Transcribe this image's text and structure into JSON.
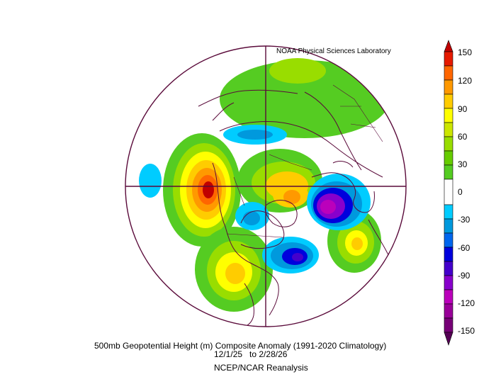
{
  "credit": "NOAA Physical Sciences Laboratory",
  "caption": {
    "line1": "500mb Geopotential Height (m) Composite Anomaly (1991-2020 Climatology)",
    "line2": "12/1/25   to 2/28/26",
    "line3": "NCEP/NCAR Reanalysis"
  },
  "colorbar": {
    "ticks": [
      "150",
      "120",
      "90",
      "60",
      "30",
      "0",
      "-30",
      "-60",
      "-90",
      "-120",
      "-150"
    ],
    "colors": {
      "p150": "#c00000",
      "p135": "#e61a00",
      "p120": "#ff6600",
      "p105": "#ff9900",
      "p90": "#ffcc00",
      "p75": "#ffff00",
      "p60": "#cce600",
      "p45": "#99dd00",
      "p30": "#55cc22",
      "zero": "#ffffff",
      "n15": "#00ccff",
      "n30": "#0099dd",
      "n45": "#0066ee",
      "n60": "#0000dd",
      "n75": "#4400cc",
      "n90": "#8800cc",
      "n105": "#bb00bb",
      "n120": "#990099",
      "n135": "#770077",
      "n150": "#550055"
    }
  },
  "map": {
    "projection": "north polar stereographic",
    "coastline_color": "#5a0a3a",
    "anomaly_centers": [
      {
        "region": "northeast Pacific / western Canada",
        "sign": "positive",
        "peak": 150
      },
      {
        "region": "northern Europe / Scandinavia",
        "sign": "negative",
        "peak": -120
      },
      {
        "region": "northwest Atlantic / eastern North America",
        "sign": "negative",
        "peak": -90
      },
      {
        "region": "Arctic / Siberia",
        "sign": "positive",
        "peak": 90
      },
      {
        "region": "central Atlantic",
        "sign": "positive",
        "peak": 75
      },
      {
        "region": "Alaska / Bering",
        "sign": "negative",
        "peak": -45
      },
      {
        "region": "Greenland / Canadian Archipelago",
        "sign": "negative",
        "peak": -30
      }
    ]
  }
}
